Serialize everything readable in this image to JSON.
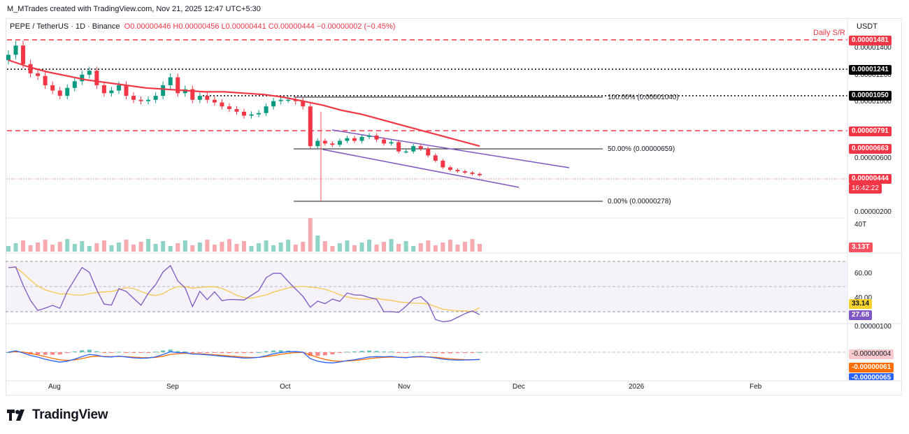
{
  "header": {
    "created_by": "M_MTrades created with TradingView.com, Nov 21, 2025 12:47 UTC+5:30"
  },
  "symbol": {
    "name": "PEPE / TetherUS · 1D · Binance",
    "ohlc": "O0.00000446 H0.00000456 L0.00000441 C0.00000444 −0.00000002 (−0.45%)",
    "unit": "USDT"
  },
  "annotations": {
    "daily_sr": "Daily S/R",
    "fib_100": "100.00% (0.00001040)",
    "fib_50": "50.00% (0.00000659)",
    "fib_0": "0.00% (0.00000278)"
  },
  "price_axis": {
    "ticks": [
      "0.00001400",
      "0.00001200",
      "0.00001000",
      "0.00000600",
      "0.00000200"
    ],
    "tags": [
      {
        "value": "0.00001481",
        "color": "#f23645"
      },
      {
        "value": "0.00001241",
        "color": "#000000"
      },
      {
        "value": "0.00001050",
        "color": "#000000"
      },
      {
        "value": "0.00000791",
        "color": "#f23645"
      },
      {
        "value": "0.00000663",
        "color": "#f23645"
      },
      {
        "value": "0.00000444",
        "color": "#f23645"
      },
      {
        "value": "16:42:22",
        "color": "#f23645"
      }
    ]
  },
  "volume": {
    "axis_label": "40T",
    "last": "3.13T",
    "last_color": "#f7525f"
  },
  "rsi": {
    "ticks": [
      "60.00",
      "40.00"
    ],
    "ma_value": "33.14",
    "ma_color": "#f5d32c",
    "rsi_value": "27.68",
    "rsi_color": "#7e57c2"
  },
  "macd": {
    "tick": "0.00000100",
    "hist_value": "-0.00000004",
    "hist_color": "#f7b6bc",
    "signal_value": "-0.00000061",
    "signal_color": "#ff6d00",
    "macd_value": "-0.00000065",
    "macd_color": "#2962ff"
  },
  "time_axis": [
    "Aug",
    "Sep",
    "Oct",
    "Nov",
    "Dec",
    "2026",
    "Feb"
  ],
  "brand": {
    "name": "TradingView"
  },
  "chart_data": {
    "type": "candlestick",
    "title": "PEPE / TetherUS · 1D · Binance",
    "x_range": [
      "2025-07-17",
      "2025-11-21"
    ],
    "approx_close_series": [
      1.35e-05,
      1.42e-05,
      1.28e-05,
      1.21e-05,
      1.19e-05,
      1.12e-05,
      1.08e-05,
      1.04e-05,
      1.1e-05,
      1.15e-05,
      1.2e-05,
      1.23e-05,
      1.12e-05,
      1.06e-05,
      1.08e-05,
      1.12e-05,
      1.04e-05,
      1.01e-05,
      1e-05,
      1.01e-05,
      1.04e-05,
      1.12e-05,
      1.18e-05,
      1.06e-05,
      1.09e-05,
      1.01e-05,
      1.04e-05,
      1.01e-05,
      9.9e-06,
      9.6e-06,
      9.4e-06,
      9.2e-06,
      8.9e-06,
      9e-06,
      9.1e-06,
      9.6e-06,
      1e-05,
      1.01e-05,
      1.01e-05,
      1e-05,
      9.6e-06,
      6.6e-06,
      7e-06,
      6.8e-06,
      6.7e-06,
      7e-06,
      7.2e-06,
      7e-06,
      7.3e-06,
      7.4e-06,
      7.1e-06,
      6.8e-06,
      6.9e-06,
      6.2e-06,
      6.2e-06,
      6.6e-06,
      6.4e-06,
      5.9e-06,
      5.5e-06,
      5e-06,
      4.8e-06,
      4.7e-06,
      4.6e-06,
      4.5e-06,
      4.4e-06
    ],
    "ma_series": [
      1.31e-05,
      1.26e-05,
      1.22e-05,
      1.19e-05,
      1.16e-05,
      1.14e-05,
      1.12e-05,
      1.1e-05,
      1.09e-05,
      1.08e-05,
      1.07e-05,
      1.07e-05,
      1.06e-05,
      1.05e-05,
      1.03e-05,
      1e-05,
      9.7e-06,
      9.3e-06,
      9e-06,
      8.6e-06,
      8.2e-06,
      7.8e-06,
      7.4e-06,
      7e-06,
      6.6e-06
    ],
    "levels": {
      "daily_sr": [
        1.481e-05,
        7.91e-06
      ],
      "swing": [
        1.241e-05,
        1.05e-05
      ],
      "fib_100": 1.04e-05,
      "fib_50": 6.59e-06,
      "fib_0": 2.78e-06
    },
    "price_range": [
      1.8e-06,
      1.5e-05
    ],
    "rsi": {
      "rsi": 27.68,
      "ma": 33.14,
      "bands": [
        70,
        30
      ]
    },
    "macd": {
      "macd": -6.5e-07,
      "signal": -6.1e-07,
      "histogram": -4e-08
    }
  }
}
